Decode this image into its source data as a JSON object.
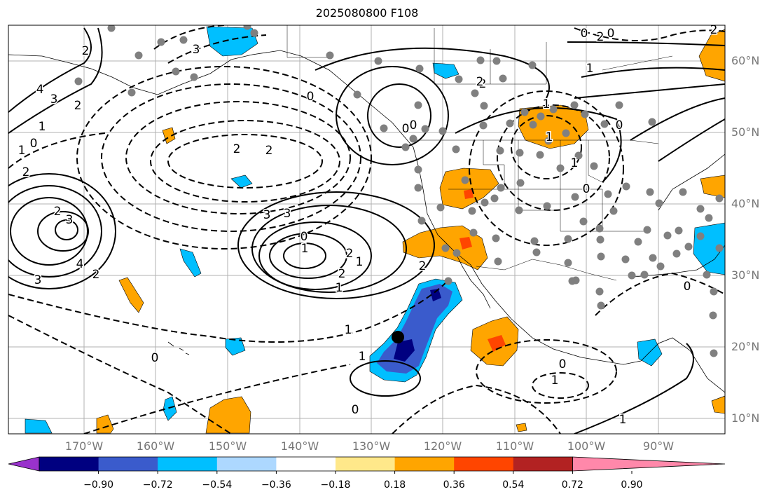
{
  "title": "2025080800 F108",
  "lat_labels": [
    "60°N",
    "50°N",
    "40°N",
    "30°N",
    "20°N",
    "10°N"
  ],
  "lon_labels": [
    "170°W",
    "160°W",
    "150°W",
    "140°W",
    "130°W",
    "120°W",
    "110°W",
    "100°W",
    "90°W"
  ],
  "colorbar": {
    "colors": [
      "#9932cc",
      "#000080",
      "#3a5bcc",
      "#00bfff",
      "#add8ff",
      "#ffffff",
      "#ffe88a",
      "#ffa500",
      "#ff4500",
      "#b22222",
      "#ff88aa"
    ],
    "labels": [
      "−0.90",
      "−0.72",
      "−0.54",
      "−0.36",
      "−0.18",
      "0.18",
      "0.36",
      "0.54",
      "0.72",
      "0.90"
    ]
  },
  "contour_labels": [
    {
      "text": "3"
    },
    {
      "text": "2"
    },
    {
      "text": "4"
    },
    {
      "text": "3"
    },
    {
      "text": "2"
    },
    {
      "text": "1"
    },
    {
      "text": "0"
    },
    {
      "text": "1"
    },
    {
      "text": "2"
    },
    {
      "text": "2"
    },
    {
      "text": "3"
    },
    {
      "text": "4"
    },
    {
      "text": "3"
    },
    {
      "text": "2"
    },
    {
      "text": "1"
    },
    {
      "text": "0"
    },
    {
      "text": "3"
    },
    {
      "text": "2"
    },
    {
      "text": "2"
    },
    {
      "text": "3"
    },
    {
      "text": "2"
    },
    {
      "text": "1"
    },
    {
      "text": "2"
    },
    {
      "text": "1"
    },
    {
      "text": "0"
    },
    {
      "text": "0"
    },
    {
      "text": "2"
    },
    {
      "text": "1"
    },
    {
      "text": "0"
    },
    {
      "text": "0"
    },
    {
      "text": "2"
    },
    {
      "text": "1"
    },
    {
      "text": "1"
    },
    {
      "text": "0"
    },
    {
      "text": "1"
    },
    {
      "text": "0"
    },
    {
      "text": "1"
    },
    {
      "text": "2"
    },
    {
      "text": "2"
    },
    {
      "text": "0"
    },
    {
      "text": "1"
    },
    {
      "text": "0"
    },
    {
      "text": "0"
    },
    {
      "text": "1"
    },
    {
      "text": "0"
    },
    {
      "text": "0"
    },
    {
      "text": "1"
    },
    {
      "text": "2"
    }
  ],
  "station_dot_color": "#808080"
}
